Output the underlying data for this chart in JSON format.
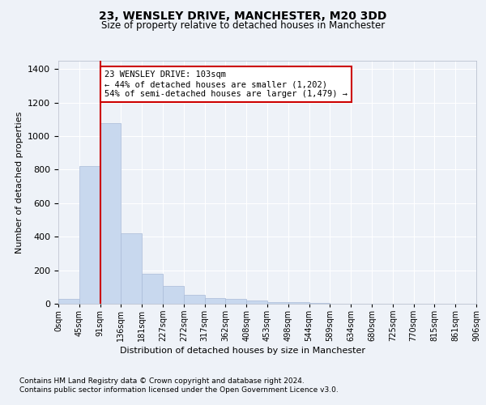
{
  "title1": "23, WENSLEY DRIVE, MANCHESTER, M20 3DD",
  "title2": "Size of property relative to detached houses in Manchester",
  "xlabel": "Distribution of detached houses by size in Manchester",
  "ylabel": "Number of detached properties",
  "bar_values": [
    30,
    820,
    1080,
    420,
    180,
    105,
    55,
    35,
    30,
    20,
    8,
    8,
    5,
    2,
    2,
    1,
    1,
    1,
    1,
    1
  ],
  "bar_color": "#c8d8ee",
  "bar_edge_color": "#aabbd8",
  "tick_labels": [
    "0sqm",
    "45sqm",
    "91sqm",
    "136sqm",
    "181sqm",
    "227sqm",
    "272sqm",
    "317sqm",
    "362sqm",
    "408sqm",
    "453sqm",
    "498sqm",
    "544sqm",
    "589sqm",
    "634sqm",
    "680sqm",
    "725sqm",
    "770sqm",
    "815sqm",
    "861sqm",
    "906sqm"
  ],
  "ylim": [
    0,
    1450
  ],
  "yticks": [
    0,
    200,
    400,
    600,
    800,
    1000,
    1200,
    1400
  ],
  "vline_x": 2.0,
  "annotation_title": "23 WENSLEY DRIVE: 103sqm",
  "annotation_line1": "← 44% of detached houses are smaller (1,202)",
  "annotation_line2": "54% of semi-detached houses are larger (1,479) →",
  "annotation_box_color": "#ffffff",
  "annotation_box_edge": "#cc0000",
  "vline_color": "#cc0000",
  "footnote1": "Contains HM Land Registry data © Crown copyright and database right 2024.",
  "footnote2": "Contains public sector information licensed under the Open Government Licence v3.0.",
  "background_color": "#eef2f8",
  "plot_bg_color": "#eef2f8"
}
